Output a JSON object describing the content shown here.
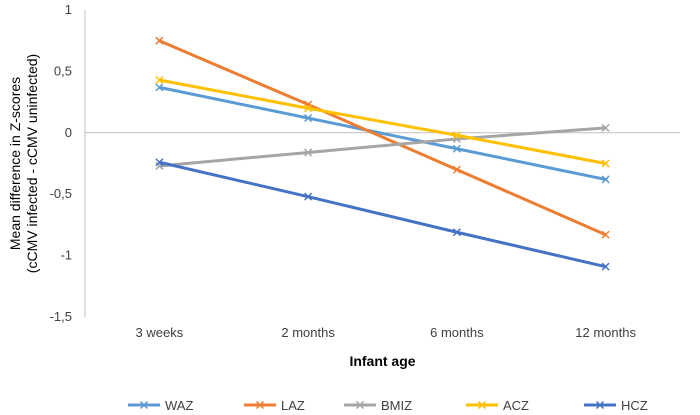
{
  "chart_data": {
    "type": "line",
    "title": "",
    "xlabel": "Infant age",
    "ylabel_lines": [
      "Mean difference in Z-scores",
      "(cCMV infected -  cCMV uninfected)"
    ],
    "categories": [
      "3 weeks",
      "2 months",
      "6 months",
      "12 months"
    ],
    "ylim": [
      -1.5,
      1
    ],
    "yticks": [
      1,
      0.5,
      0,
      -0.5,
      -1,
      -1.5
    ],
    "ytick_labels": [
      "1",
      "0,5",
      "0",
      "-0,5",
      "-1",
      "-1,5"
    ],
    "grid": false,
    "legend_position": "bottom",
    "marker": "x",
    "series": [
      {
        "name": "WAZ",
        "color": "#5B9BD5",
        "values": [
          0.37,
          0.12,
          -0.13,
          -0.38
        ]
      },
      {
        "name": "LAZ",
        "color": "#ED7D31",
        "values": [
          0.75,
          0.23,
          -0.3,
          -0.83
        ]
      },
      {
        "name": "BMIZ",
        "color": "#A5A5A5",
        "values": [
          -0.27,
          -0.16,
          -0.05,
          0.04
        ]
      },
      {
        "name": "ACZ",
        "color": "#FFC000",
        "values": [
          0.43,
          0.2,
          -0.02,
          -0.25
        ]
      },
      {
        "name": "HCZ",
        "color": "#4472C4",
        "values": [
          -0.24,
          -0.52,
          -0.81,
          -1.09
        ]
      }
    ]
  }
}
